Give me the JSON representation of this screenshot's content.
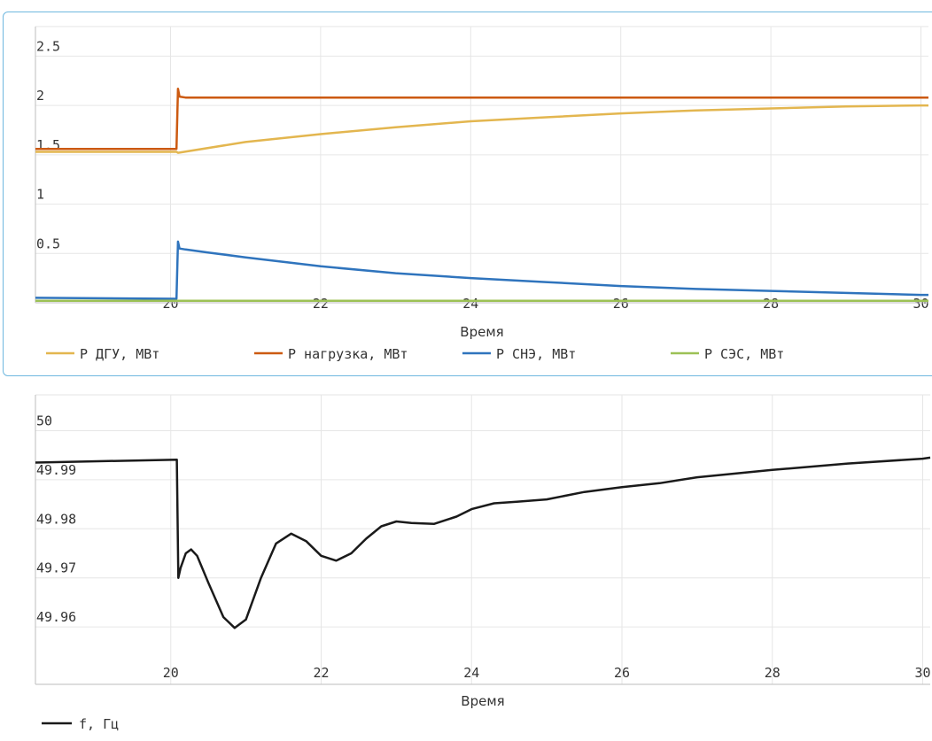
{
  "chart_data": [
    {
      "type": "line",
      "xlabel": "Время",
      "ylabel": "",
      "xlim": [
        18.2,
        30.1
      ],
      "ylim": [
        0,
        2.8
      ],
      "x_ticks": [
        "20",
        "22",
        "24",
        "26",
        "28",
        "30"
      ],
      "y_ticks": [
        "0.5",
        "1",
        "1.5",
        "2",
        "2.5"
      ],
      "grid": true,
      "legend_position": "bottom",
      "series": [
        {
          "name": "P ДГУ, МВт",
          "color": "#e3b64f",
          "x": [
            18.2,
            20.0,
            20.08,
            20.1,
            21,
            22,
            23,
            24,
            25,
            26,
            27,
            28,
            29,
            30,
            30.1
          ],
          "y": [
            1.53,
            1.53,
            1.53,
            1.52,
            1.63,
            1.71,
            1.78,
            1.84,
            1.88,
            1.92,
            1.95,
            1.97,
            1.99,
            2.0,
            2.0
          ]
        },
        {
          "name": "P нагрузка, МВт",
          "color": "#cc5a11",
          "x": [
            18.2,
            20.08,
            20.1,
            20.12,
            20.2,
            20.3,
            22,
            24,
            26,
            28,
            30,
            30.1
          ],
          "y": [
            1.56,
            1.56,
            2.17,
            2.09,
            2.08,
            2.08,
            2.08,
            2.08,
            2.08,
            2.08,
            2.08,
            2.08
          ]
        },
        {
          "name": "P СНЭ, МВт",
          "color": "#2f74bd",
          "x": [
            18.2,
            20.08,
            20.1,
            20.12,
            20.2,
            20.5,
            21,
            22,
            23,
            24,
            25,
            26,
            27,
            28,
            29,
            30,
            30.1
          ],
          "y": [
            0.05,
            0.04,
            0.62,
            0.55,
            0.54,
            0.51,
            0.46,
            0.37,
            0.3,
            0.25,
            0.21,
            0.17,
            0.14,
            0.12,
            0.1,
            0.08,
            0.08
          ]
        },
        {
          "name": "P СЭС, МВт",
          "color": "#9cc155",
          "x": [
            18.2,
            30.1
          ],
          "y": [
            0.02,
            0.02
          ]
        }
      ]
    },
    {
      "type": "line",
      "xlabel": "Время",
      "ylabel": "",
      "xlim": [
        18.2,
        30.1
      ],
      "ylim": [
        49.9483,
        50.0073
      ],
      "x_ticks": [
        "20",
        "22",
        "24",
        "26",
        "28",
        "30"
      ],
      "y_ticks": [
        "49.96",
        "49.97",
        "49.98",
        "49.99",
        "50"
      ],
      "grid": true,
      "legend_position": "bottom-left",
      "series": [
        {
          "name": "f, Гц",
          "color": "#1a1a1a",
          "x": [
            18.2,
            20.08,
            20.1,
            20.13,
            20.2,
            20.27,
            20.35,
            20.5,
            20.7,
            20.85,
            21.0,
            21.2,
            21.4,
            21.6,
            21.8,
            22.0,
            22.2,
            22.4,
            22.6,
            22.8,
            23.0,
            23.2,
            23.5,
            23.8,
            24.0,
            24.3,
            24.6,
            25.0,
            25.5,
            26.0,
            26.5,
            27.0,
            28.0,
            29.0,
            30.0,
            30.1
          ],
          "y": [
            49.9935,
            49.9941,
            49.97,
            49.972,
            49.975,
            49.9758,
            49.9745,
            49.969,
            49.962,
            49.9598,
            49.9615,
            49.97,
            49.977,
            49.979,
            49.9775,
            49.9745,
            49.9735,
            49.975,
            49.978,
            49.9805,
            49.9815,
            49.9812,
            49.981,
            49.9825,
            49.984,
            49.9852,
            49.9855,
            49.986,
            49.9875,
            49.9885,
            49.9893,
            49.9905,
            49.992,
            49.9933,
            49.9943,
            49.9945
          ]
        }
      ]
    }
  ]
}
